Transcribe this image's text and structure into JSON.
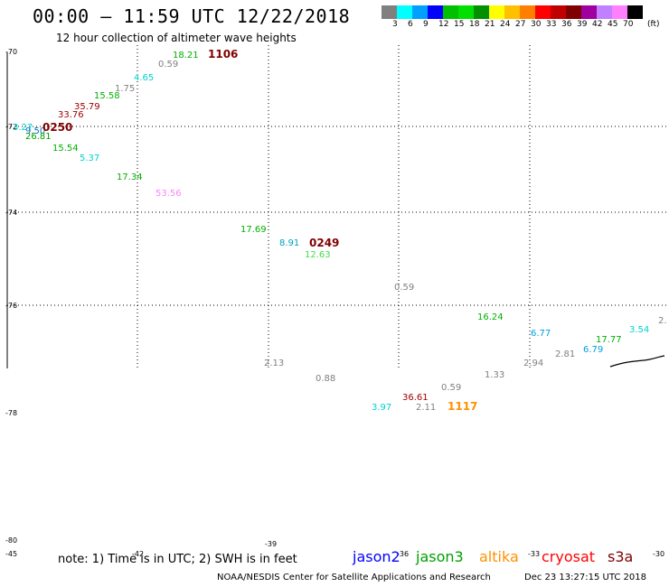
{
  "header": {
    "title": "00:00 – 11:59 UTC 12/22/2018",
    "subtitle": "12 hour collection of altimeter wave heights"
  },
  "colorbar": {
    "values": [
      "3",
      "6",
      "9",
      "12",
      "15",
      "18",
      "21",
      "24",
      "27",
      "30",
      "33",
      "36",
      "39",
      "42",
      "45",
      "70"
    ],
    "unit": "(ft)",
    "colors": [
      "#808080",
      "#00ffff",
      "#00a0ff",
      "#0000ff",
      "#00c000",
      "#00e000",
      "#009000",
      "#ffff00",
      "#ffc000",
      "#ff8000",
      "#ff0000",
      "#c00000",
      "#800000",
      "#a000a0",
      "#c080ff",
      "#ff80ff",
      "#000000"
    ]
  },
  "map": {
    "lat_labels": [
      "-70",
      "-72",
      "-74",
      "-76",
      "-78",
      "-80"
    ],
    "lon_labels": [
      "-45",
      "-42",
      "-39",
      "-36",
      "-33",
      "-30"
    ],
    "wave_heights": [
      {
        "text": "18.21",
        "color": "#00b000"
      },
      {
        "text": "1106",
        "color": "#800000"
      },
      {
        "text": "0.59",
        "color": "#808080"
      },
      {
        "text": "4.65",
        "color": "#00d0d0"
      },
      {
        "text": "1.75",
        "color": "#808080"
      },
      {
        "text": "15.58",
        "color": "#00b000"
      },
      {
        "text": "35.79",
        "color": "#a00000"
      },
      {
        "text": "33.76",
        "color": "#a00000"
      },
      {
        "text": "3.27",
        "color": "#00d0d0"
      },
      {
        "text": "9.50",
        "color": "#0070c0"
      },
      {
        "text": "0250",
        "color": "#800000"
      },
      {
        "text": "26.81",
        "color": "#00a000"
      },
      {
        "text": "15.54",
        "color": "#00b000"
      },
      {
        "text": "5.37",
        "color": "#00d0d0"
      },
      {
        "text": "17.34",
        "color": "#00b000"
      },
      {
        "text": "53.56",
        "color": "#ff80ff"
      },
      {
        "text": "17.69",
        "color": "#00b000"
      },
      {
        "text": "8.91",
        "color": "#00a0c0"
      },
      {
        "text": "0249",
        "color": "#800000"
      },
      {
        "text": "12.63",
        "color": "#40e040"
      },
      {
        "text": "0.59",
        "color": "#808080"
      },
      {
        "text": "16.24",
        "color": "#00b000"
      },
      {
        "text": "6.77",
        "color": "#00a0e0"
      },
      {
        "text": "3.54",
        "color": "#00d0d0"
      },
      {
        "text": "2.",
        "color": "#808080"
      },
      {
        "text": "17.77",
        "color": "#00b000"
      },
      {
        "text": "2.81",
        "color": "#808080"
      },
      {
        "text": "6.79",
        "color": "#00a0e0"
      },
      {
        "text": "2.13",
        "color": "#808080"
      },
      {
        "text": "2.94",
        "color": "#808080"
      },
      {
        "text": "1.33",
        "color": "#808080"
      },
      {
        "text": "0.88",
        "color": "#808080"
      },
      {
        "text": "0.59",
        "color": "#808080"
      },
      {
        "text": "36.61",
        "color": "#a00000"
      },
      {
        "text": "3.97",
        "color": "#00d0d0"
      },
      {
        "text": "2.11",
        "color": "#808080"
      },
      {
        "text": "1117",
        "color": "#ff9000"
      }
    ]
  },
  "footer": {
    "note": "note: 1) Time is in UTC; 2) SWH is in feet",
    "legend": [
      {
        "label": "jason2",
        "color": "#0000ff"
      },
      {
        "label": "jason3",
        "color": "#00a000"
      },
      {
        "label": "altika",
        "color": "#ff9000"
      },
      {
        "label": "cryosat",
        "color": "#ff0000"
      },
      {
        "label": "s3a",
        "color": "#800000"
      }
    ],
    "credit": "NOAA/NESDIS Center for Satellite Applications and Research",
    "timestamp": "Dec 23 13:27:15 UTC 2018"
  }
}
